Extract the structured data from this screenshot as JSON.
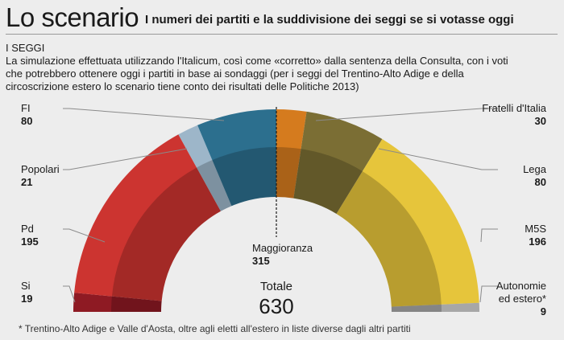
{
  "header": {
    "title": "Lo scenario",
    "subtitle": "I numeri dei partiti e la suddivisione dei seggi se si votasse oggi",
    "section": "I SEGGI",
    "description": "La simulazione effettuata utilizzando l'Italicum, così come «corretto» dalla sentenza della Consulta, con i voti che potrebbero ottenere oggi i partiti in base ai sondaggi (per i seggi del Trentino-Alto Adige e della circoscrizione estero lo scenario tiene conto dei risultati delle Politiche 2013)"
  },
  "chart_data": {
    "type": "pie",
    "variant": "hemicycle",
    "order": "left-to-right",
    "series": [
      {
        "label": "Si",
        "value": 19,
        "color": "#8e1a23"
      },
      {
        "label": "Pd",
        "value": 195,
        "color": "#cc3430"
      },
      {
        "label": "Popolari",
        "value": 21,
        "color": "#9db6c9"
      },
      {
        "label": "FI",
        "value": 80,
        "color": "#2c6f8e"
      },
      {
        "label": "Fratelli d'Italia",
        "value": 30,
        "color": "#d57b1e"
      },
      {
        "label": "Lega",
        "value": 80,
        "color": "#7b6e34"
      },
      {
        "label": "M5S",
        "value": 196,
        "color": "#e6c53b"
      },
      {
        "label": "Autonomie ed estero*",
        "value": 9,
        "color": "#a7a7a7"
      }
    ],
    "total_label": "Totale",
    "total": 630,
    "majority_label": "Maggioranza",
    "majority": 315
  },
  "footnote": "* Trentino-Alto Adige e Valle d'Aosta, oltre agli eletti all'estero in liste diverse dagli altri partiti"
}
